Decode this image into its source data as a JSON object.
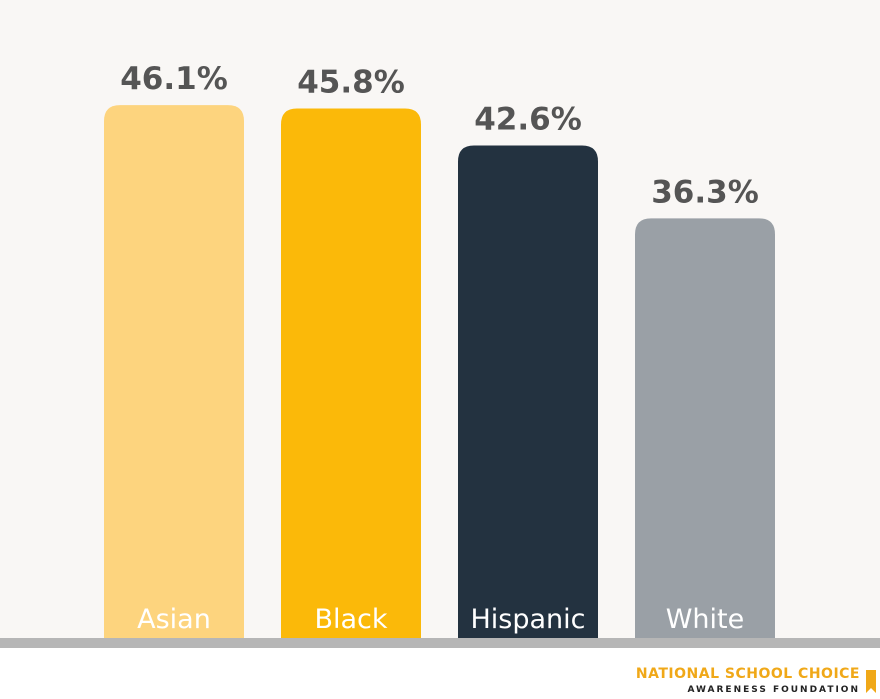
{
  "chart_data": {
    "type": "bar",
    "categories": [
      "Asian",
      "Black",
      "Hispanic",
      "White"
    ],
    "values": [
      46.1,
      45.8,
      42.6,
      36.3
    ],
    "value_labels": [
      "46.1%",
      "45.8%",
      "42.6%",
      "36.3%"
    ],
    "colors": [
      "#fdd47e",
      "#fbb909",
      "#233240",
      "#9aa0a6"
    ]
  },
  "footer": {
    "line1": "NATIONAL SCHOOL CHOICE",
    "line2": "AWARENESS FOUNDATION"
  }
}
